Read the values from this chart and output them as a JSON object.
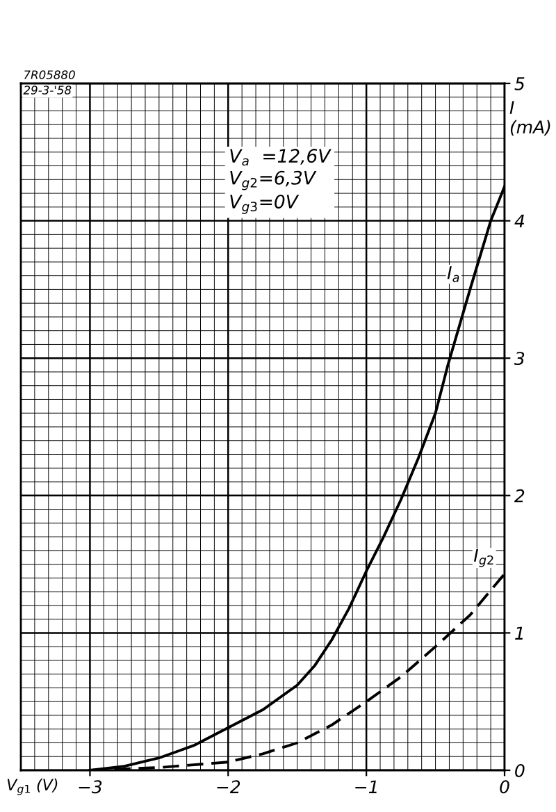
{
  "chart_data": {
    "type": "line",
    "xlabel": "V$_{g1}$ (V)",
    "ylabel": "I\n(mA)",
    "xlim": [
      -3.5,
      0
    ],
    "xticks": [
      {
        "value": -3,
        "label": "−3"
      },
      {
        "value": -2,
        "label": "−2"
      },
      {
        "value": -1,
        "label": "−1"
      },
      0
    ],
    "ylim": [
      0,
      5
    ],
    "yticks": [
      0,
      1,
      2,
      3,
      4,
      5
    ],
    "grid": true,
    "legend": false,
    "annotations": [
      "7R05880",
      "29-3-'58",
      "V$_{a}$  =12,6V\nV$_{g2}$=6,3V\nV$_{g3}$=0V"
    ],
    "series": [
      {
        "name": "I$_{a}$",
        "color": "#000000",
        "line_style": "solid",
        "x": [
          -3,
          -2.75,
          -2.5,
          -2.25,
          -2,
          -1.75,
          -1.5,
          -1.375,
          -1.25,
          -1.125,
          -1,
          -0.875,
          -0.75,
          -0.625,
          -0.5,
          -0.41,
          -0.25,
          -0.1,
          0
        ],
        "values": [
          0,
          0.03,
          0.09,
          0.18,
          0.31,
          0.44,
          0.62,
          0.76,
          0.95,
          1.18,
          1.45,
          1.7,
          1.97,
          2.27,
          2.6,
          2.95,
          3.5,
          4.0,
          4.25
        ]
      },
      {
        "name": "I$_{g2}$",
        "color": "#000000",
        "line_style": "dashed",
        "x": [
          -3,
          -2.5,
          -2,
          -1.75,
          -1.5,
          -1.25,
          -1,
          -0.75,
          -0.5,
          -0.25,
          0
        ],
        "values": [
          0,
          0.02,
          0.06,
          0.12,
          0.2,
          0.33,
          0.5,
          0.68,
          0.9,
          1.13,
          1.43
        ]
      }
    ]
  }
}
